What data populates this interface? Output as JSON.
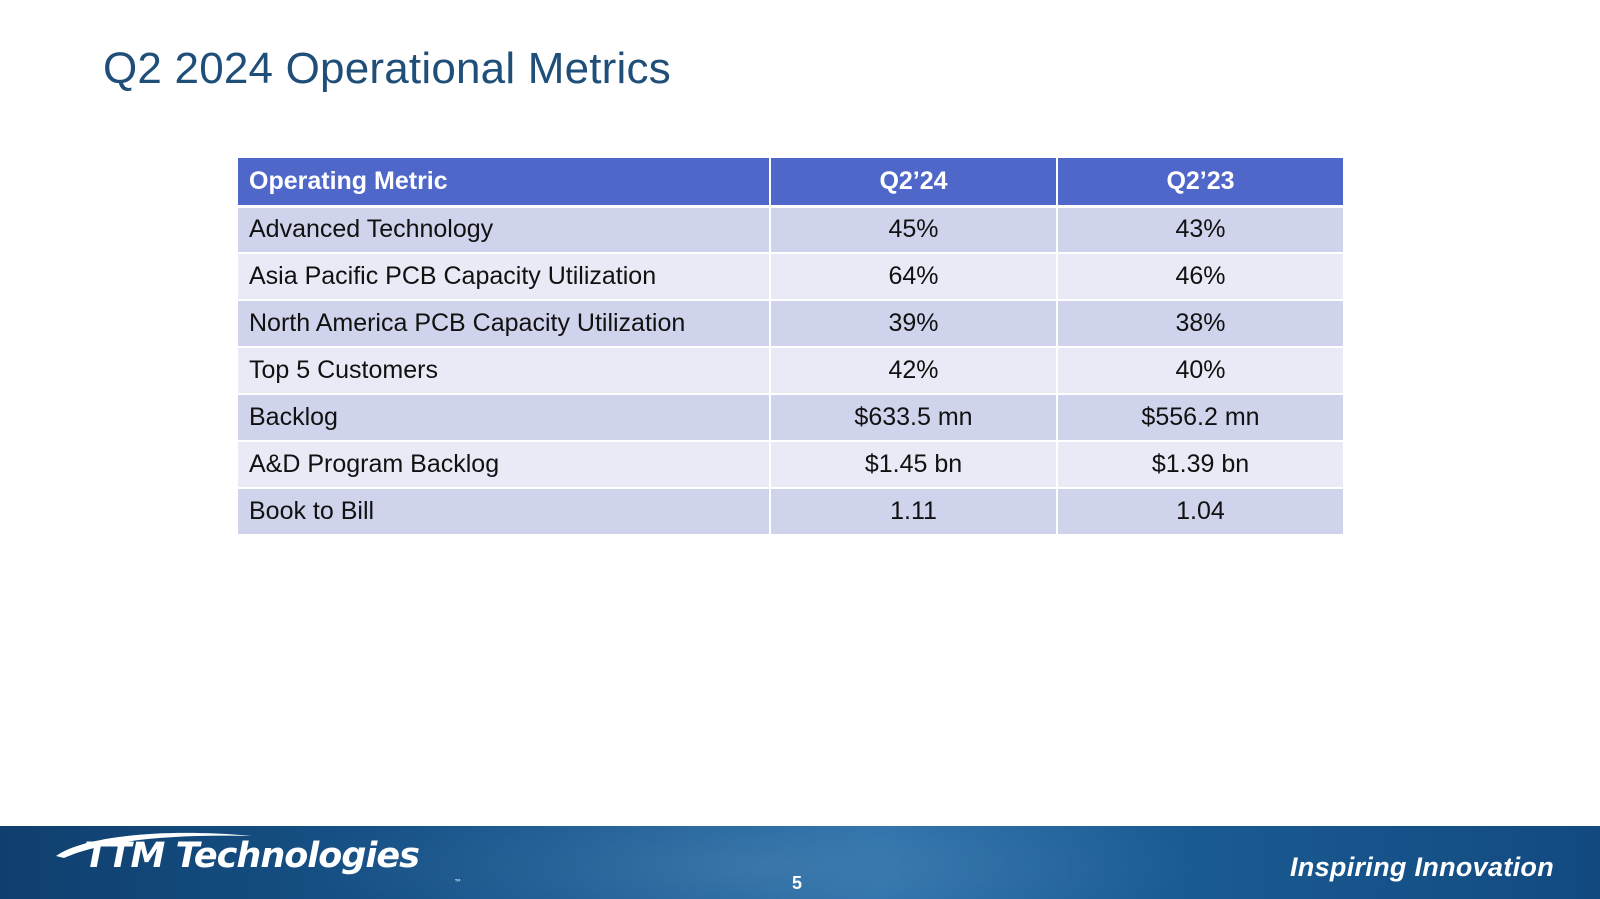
{
  "slide": {
    "title": "Q2 2024 Operational Metrics",
    "page_number": "5"
  },
  "table": {
    "headers": [
      "Operating Metric",
      "Q2’24",
      "Q2’23"
    ],
    "rows": [
      {
        "metric": "Advanced Technology",
        "q2_24": "45%",
        "q2_23": "43%"
      },
      {
        "metric": "Asia Pacific PCB Capacity Utilization",
        "q2_24": "64%",
        "q2_23": "46%"
      },
      {
        "metric": "North America PCB Capacity Utilization",
        "q2_24": "39%",
        "q2_23": "38%"
      },
      {
        "metric": "Top 5 Customers",
        "q2_24": "42%",
        "q2_23": "40%"
      },
      {
        "metric": "Backlog",
        "q2_24": "$633.5 mn",
        "q2_23": "$556.2 mn"
      },
      {
        "metric": "A&D Program Backlog",
        "q2_24": "$1.45 bn",
        "q2_23": "$1.39 bn"
      },
      {
        "metric": "Book to Bill",
        "q2_24": "1.11",
        "q2_23": "1.04"
      }
    ]
  },
  "footer": {
    "logo_text": "TTM Technologies",
    "trademark": "™",
    "tagline": "Inspiring Innovation"
  },
  "colors": {
    "title": "#1f4e79",
    "header_bg": "#4f67c8",
    "row_odd": "#d0d3ec",
    "row_even": "#e8eaf5",
    "footer_bg": "#1a5a92"
  },
  "icons": [
    "logo-swoosh-icon"
  ]
}
